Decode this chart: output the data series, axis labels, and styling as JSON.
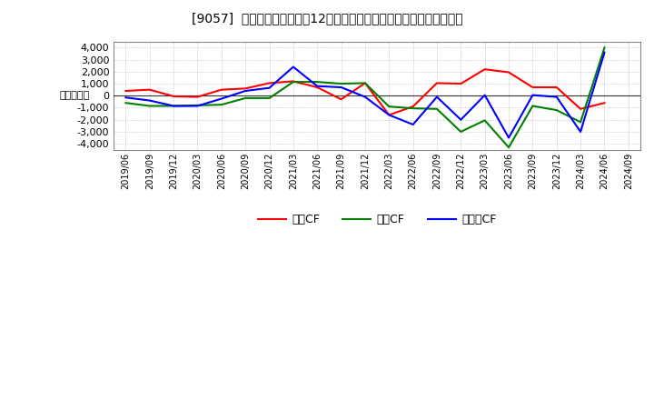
{
  "title": "[9057]  キャッシュフローの12か月移動合計の対前年同期増減額の推移",
  "ylabel": "（百万円）",
  "background_color": "#ffffff",
  "plot_bg_color": "#ffffff",
  "grid_color": "#aaaaaa",
  "x_labels": [
    "2019/06",
    "2019/09",
    "2019/12",
    "2020/03",
    "2020/06",
    "2020/09",
    "2020/12",
    "2021/03",
    "2021/06",
    "2021/09",
    "2021/12",
    "2022/03",
    "2022/06",
    "2022/09",
    "2022/12",
    "2023/03",
    "2023/06",
    "2023/09",
    "2023/12",
    "2024/03",
    "2024/06",
    "2024/09"
  ],
  "operating_cf": [
    400,
    500,
    -50,
    -100,
    500,
    600,
    1050,
    1200,
    700,
    -300,
    1050,
    -1600,
    -900,
    1050,
    1000,
    2200,
    1950,
    700,
    700,
    -1100,
    -600,
    null
  ],
  "investing_cf": [
    -600,
    -850,
    -850,
    -800,
    -750,
    -200,
    -200,
    1150,
    1150,
    1000,
    1050,
    -900,
    -1050,
    -1100,
    -3000,
    -2050,
    -4300,
    -850,
    -1200,
    -2200,
    4000,
    null
  ],
  "free_cf": [
    -150,
    -400,
    -850,
    -850,
    -250,
    400,
    650,
    2400,
    800,
    700,
    -100,
    -1600,
    -2400,
    -100,
    -2000,
    50,
    -3500,
    50,
    -100,
    -3000,
    3600,
    null
  ],
  "ylim": [
    -4500,
    4500
  ],
  "yticks": [
    -4000,
    -3000,
    -2000,
    -1000,
    0,
    1000,
    2000,
    3000,
    4000
  ],
  "legend_labels": [
    "営業CF",
    "投資CF",
    "フリーCF"
  ],
  "colors": [
    "#ff0000",
    "#008000",
    "#0000ff"
  ],
  "linewidth": 1.5
}
